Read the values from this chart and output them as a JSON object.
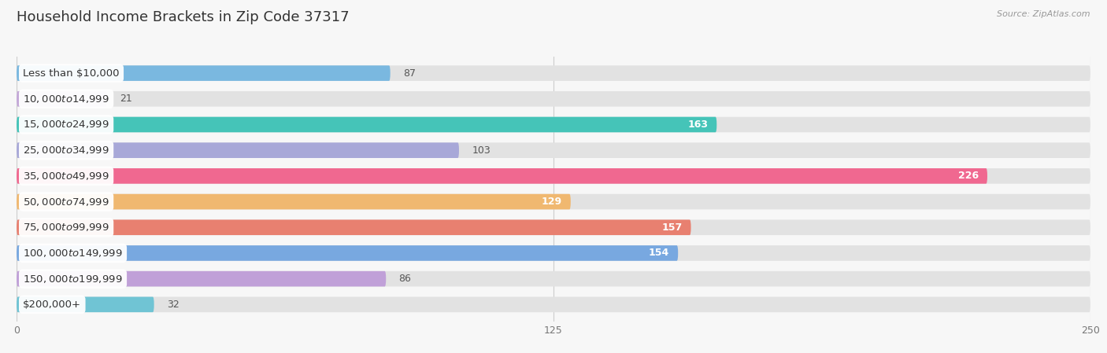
{
  "title": "Household Income Brackets in Zip Code 37317",
  "source": "Source: ZipAtlas.com",
  "categories": [
    "Less than $10,000",
    "$10,000 to $14,999",
    "$15,000 to $24,999",
    "$25,000 to $34,999",
    "$35,000 to $49,999",
    "$50,000 to $74,999",
    "$75,000 to $99,999",
    "$100,000 to $149,999",
    "$150,000 to $199,999",
    "$200,000+"
  ],
  "values": [
    87,
    21,
    163,
    103,
    226,
    129,
    157,
    154,
    86,
    32
  ],
  "bar_colors": [
    "#7ab8e0",
    "#c4a8d8",
    "#45c4b8",
    "#a8a8d8",
    "#f06890",
    "#f0b870",
    "#e88070",
    "#78a8e0",
    "#c0a0d8",
    "#70c4d4"
  ],
  "background_color": "#f7f7f7",
  "bar_bg_color": "#e2e2e2",
  "xlim": [
    0,
    250
  ],
  "xticks": [
    0,
    125,
    250
  ],
  "title_fontsize": 13,
  "label_fontsize": 9.5,
  "value_fontsize": 9,
  "bar_height": 0.6,
  "fig_width": 14.06,
  "fig_height": 4.49,
  "inside_threshold": 125
}
